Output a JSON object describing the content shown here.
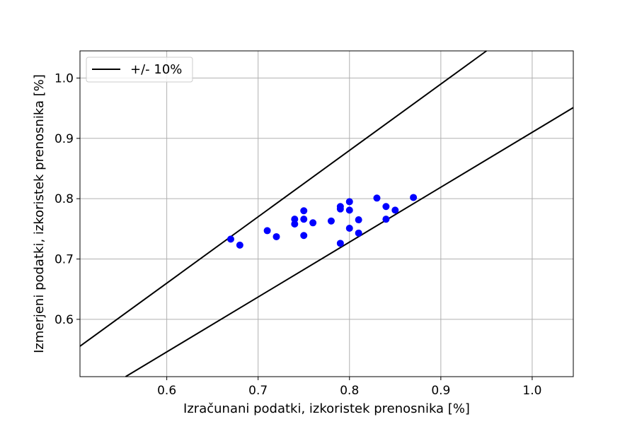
{
  "chart_data": {
    "type": "scatter",
    "xlabel": "Izračunani podatki, izkoristek prenosnika [%]",
    "ylabel": "Izmerjeni podatki, izkoristek prenosnika [%]",
    "xlim": [
      0.505,
      1.045
    ],
    "ylim": [
      0.505,
      1.045
    ],
    "x_ticks": [
      0.6,
      0.7,
      0.8,
      0.9,
      1.0
    ],
    "x_tick_labels": [
      "0.6",
      "0.7",
      "0.8",
      "0.9",
      "1.0"
    ],
    "y_ticks": [
      0.6,
      0.7,
      0.8,
      0.9,
      1.0
    ],
    "y_tick_labels": [
      "0.6",
      "0.7",
      "0.8",
      "0.9",
      "1.0"
    ],
    "grid": true,
    "legend": {
      "position": "top-left",
      "entries": [
        "+/- 10%"
      ]
    },
    "bound_lines": [
      {
        "legend": "+/- 10%",
        "factor": 1.1,
        "color": "#000000"
      },
      {
        "legend": "+/- 10%",
        "factor": 0.91,
        "color": "#000000"
      }
    ],
    "series": [
      {
        "color": "#0000ff",
        "points": [
          [
            0.67,
            0.733
          ],
          [
            0.68,
            0.723
          ],
          [
            0.71,
            0.747
          ],
          [
            0.72,
            0.737
          ],
          [
            0.74,
            0.766
          ],
          [
            0.74,
            0.758
          ],
          [
            0.75,
            0.78
          ],
          [
            0.75,
            0.766
          ],
          [
            0.75,
            0.739
          ],
          [
            0.76,
            0.76
          ],
          [
            0.78,
            0.763
          ],
          [
            0.79,
            0.787
          ],
          [
            0.79,
            0.783
          ],
          [
            0.79,
            0.726
          ],
          [
            0.8,
            0.795
          ],
          [
            0.8,
            0.781
          ],
          [
            0.8,
            0.751
          ],
          [
            0.81,
            0.765
          ],
          [
            0.81,
            0.743
          ],
          [
            0.83,
            0.801
          ],
          [
            0.84,
            0.787
          ],
          [
            0.84,
            0.766
          ],
          [
            0.85,
            0.781
          ],
          [
            0.87,
            0.802
          ]
        ]
      }
    ]
  }
}
